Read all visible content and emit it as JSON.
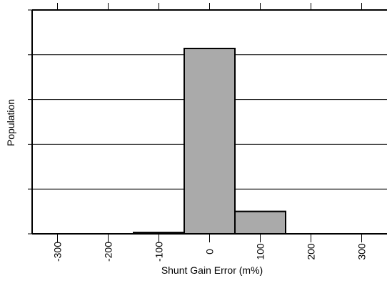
{
  "chart_data": {
    "type": "bar",
    "title": "",
    "xlabel": "Shunt Gain Error (m%)",
    "ylabel": "Population",
    "x_ticks": [
      -300,
      -200,
      -100,
      0,
      100,
      200,
      300
    ],
    "x_tick_labels": [
      "-300",
      "-200",
      "-100",
      "0",
      "100",
      "200",
      "300"
    ],
    "xlim": [
      -350,
      350
    ],
    "ylim": [
      0,
      5
    ],
    "y_ticks": [
      0,
      1,
      2,
      3,
      4,
      5
    ],
    "y_tick_labels": [],
    "grid": "horizontal",
    "bins": [
      {
        "x0": -150,
        "x1": -50,
        "value": 0.03
      },
      {
        "x0": -50,
        "x1": 50,
        "value": 4.14
      },
      {
        "x0": 50,
        "x1": 150,
        "value": 0.5
      }
    ],
    "bar_color": "#aaaaaa"
  }
}
